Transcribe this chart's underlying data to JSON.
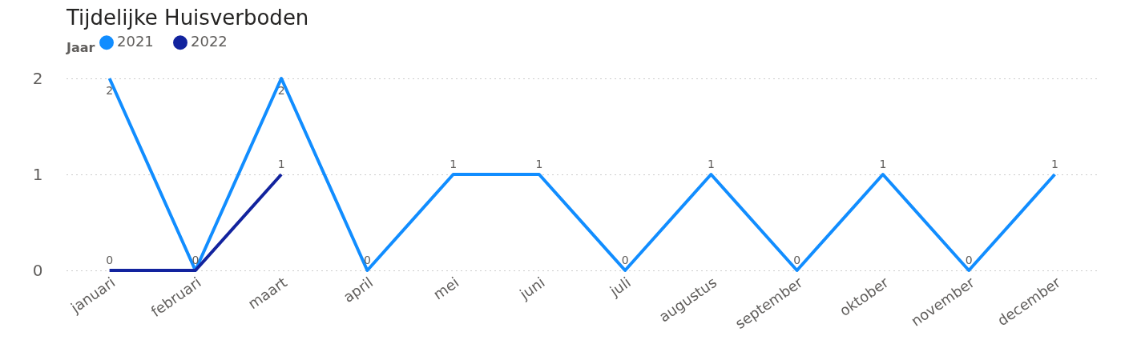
{
  "chart_data": {
    "type": "line",
    "title": "Tijdelijke Huisverboden",
    "legend_title": "Jaar",
    "categories": [
      "januari",
      "februari",
      "maart",
      "april",
      "mei",
      "juni",
      "juli",
      "augustus",
      "september",
      "oktober",
      "november",
      "december"
    ],
    "series": [
      {
        "name": "2021",
        "color": "#118dff",
        "values": [
          2,
          0,
          2,
          0,
          1,
          1,
          0,
          1,
          0,
          1,
          0,
          1
        ],
        "value_labels": [
          "2",
          "0",
          "2",
          "0",
          "1",
          "1",
          "0",
          "1",
          "0",
          "1",
          "0",
          "1"
        ]
      },
      {
        "name": "2022",
        "color": "#12239e",
        "values": [
          0,
          0,
          1,
          null,
          null,
          null,
          null,
          null,
          null,
          null,
          null,
          null
        ],
        "value_labels": [
          "0",
          null,
          "1",
          null,
          null,
          null,
          null,
          null,
          null,
          null,
          null,
          null
        ]
      }
    ],
    "ylim": [
      0,
      2
    ],
    "yticks": [
      0,
      1,
      2
    ],
    "grid": "y",
    "legend": "top left",
    "marker": "none",
    "line_style": "solid"
  }
}
